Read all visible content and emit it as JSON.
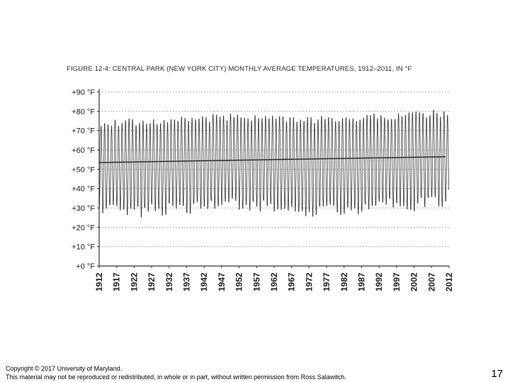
{
  "figure": {
    "title": "FIGURE 12-4: CENTRAL PARK (NEW YORK CITY) MONTHLY AVERAGE TEMPERATURES, 1912–2011, IN °F"
  },
  "footer": {
    "copyright_line1": "Copyright © 2017 University of Maryland.",
    "copyright_line2": "This material may not be reproduced or redistributed, in whole or in part, without written permission from Ross Salawitch.",
    "slide_number": "17"
  },
  "chart_data": {
    "type": "line",
    "title": "FIGURE 12-4: CENTRAL PARK (NEW YORK CITY) MONTHLY AVERAGE TEMPERATURES, 1912–2011, IN °F",
    "xlabel": "",
    "ylabel": "",
    "xlim": [
      1912,
      2012
    ],
    "ylim": [
      0,
      90
    ],
    "grid": true,
    "y_ticks": [
      0,
      10,
      20,
      30,
      40,
      50,
      60,
      70,
      80,
      90
    ],
    "y_tick_labels": [
      "+0 °F",
      "+10 °F",
      "+20 °F",
      "+30 °F",
      "+40 °F",
      "+50 °F",
      "+60 °F",
      "+70 °F",
      "+80 °F",
      "+90 °F"
    ],
    "x_ticks": [
      1912,
      1917,
      1922,
      1927,
      1932,
      1937,
      1942,
      1947,
      1952,
      1957,
      1962,
      1967,
      1972,
      1977,
      1982,
      1987,
      1992,
      1997,
      2002,
      2007,
      2012
    ],
    "x_tick_labels": [
      "1912",
      "1917",
      "1922",
      "1927",
      "1932",
      "1937",
      "1942",
      "1947",
      "1952",
      "1957",
      "1962",
      "1967",
      "1972",
      "1977",
      "1982",
      "1987",
      "1992",
      "1997",
      "2002",
      "2007",
      "2012"
    ],
    "series": [
      {
        "name": "",
        "note_style": "monthly",
        "annual_cycle_approx": {
          "years": [
            1912,
            1922,
            1932,
            1942,
            1952,
            1962,
            1972,
            1982,
            1992,
            2002,
            2011
          ],
          "summer_peak_f": [
            75,
            75,
            76,
            77,
            78,
            77,
            76,
            77,
            78,
            79,
            80
          ],
          "winter_min_f": [
            30,
            27,
            29,
            30,
            31,
            30,
            28,
            28,
            31,
            31,
            32
          ]
        }
      },
      {
        "name": "",
        "note_style": "trend",
        "x": [
          1912,
          2011
        ],
        "values": [
          53.5,
          56.5
        ]
      }
    ]
  }
}
